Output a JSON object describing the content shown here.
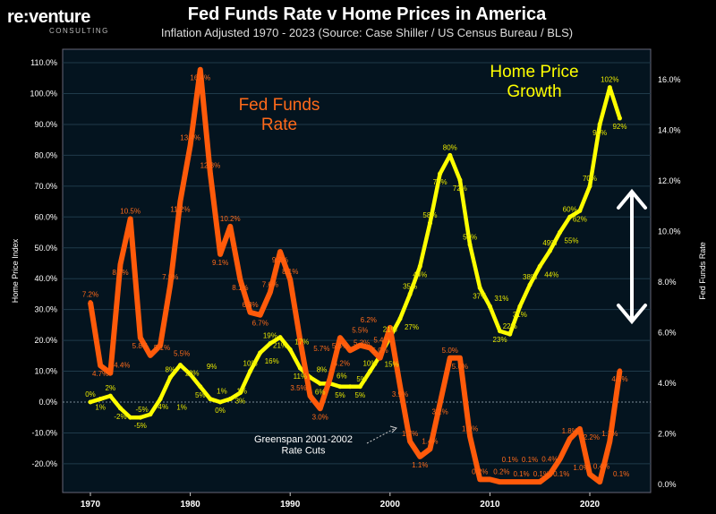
{
  "header": {
    "logo": "re:venture",
    "logo_sub": "CONSULTING",
    "title": "Fed Funds Rate v Home Prices in America",
    "subtitle": "Inflation Adjusted 1970 - 2023 (Source: Case Shiller / US Census Bureau / BLS)"
  },
  "chart_data": {
    "type": "line",
    "title": "Fed Funds Rate v Home Prices in America",
    "x": [
      1970,
      1971,
      1972,
      1973,
      1974,
      1975,
      1976,
      1977,
      1978,
      1979,
      1980,
      1981,
      1982,
      1983,
      1984,
      1985,
      1986,
      1987,
      1988,
      1989,
      1990,
      1991,
      1992,
      1993,
      1994,
      1995,
      1996,
      1997,
      1998,
      1999,
      2000,
      2001,
      2002,
      2003,
      2004,
      2005,
      2006,
      2007,
      2008,
      2009,
      2010,
      2011,
      2012,
      2013,
      2014,
      2015,
      2016,
      2017,
      2018,
      2019,
      2020,
      2021,
      2022,
      2023
    ],
    "xticks": [
      1970,
      1980,
      1990,
      2000,
      2010,
      2020
    ],
    "xlim": [
      1967,
      2026
    ],
    "left_axis": {
      "label": "Home Price Index",
      "ylim": [
        -27,
        115
      ],
      "ticks": [
        -20,
        -10,
        0,
        10,
        20,
        30,
        40,
        50,
        60,
        70,
        80,
        90,
        100,
        110
      ],
      "tick_labels": [
        "-20.0%",
        "-10.0%",
        "0.0%",
        "10.0%",
        "20.0%",
        "30.0%",
        "40.0%",
        "50.0%",
        "60.0%",
        "70.0%",
        "80.0%",
        "90.0%",
        "100.0%",
        "110.0%"
      ]
    },
    "right_axis": {
      "label": "Fed Funds Rate",
      "ylim": [
        -0.2,
        16.5
      ],
      "ticks": [
        0,
        2,
        4,
        6,
        8,
        10,
        12,
        14,
        16
      ],
      "tick_labels": [
        "0.0%",
        "2.0%",
        "4.0%",
        "6.0%",
        "8.0%",
        "10.0%",
        "12.0%",
        "14.0%",
        "16.0%"
      ]
    },
    "grid": true,
    "series": [
      {
        "name": "Home Price Growth",
        "axis": "left",
        "color": "#ffff00",
        "values": [
          0,
          1,
          2,
          -2,
          -5,
          -5,
          -4,
          1,
          8,
          12,
          9,
          5,
          1,
          0,
          1,
          3,
          10,
          16,
          19,
          21,
          17,
          11,
          8,
          6,
          6,
          5,
          5,
          5,
          10,
          15,
          21,
          27,
          35,
          44,
          58,
          74,
          80,
          72,
          51,
          37,
          31,
          23,
          22,
          31,
          38,
          44,
          49,
          55,
          60,
          62,
          70,
          90,
          102,
          92
        ]
      },
      {
        "name": "Fed Funds Rate",
        "axis": "right",
        "color": "#ff5a0a",
        "values": [
          7.2,
          4.7,
          4.4,
          8.7,
          10.5,
          5.8,
          5.1,
          5.5,
          7.9,
          11.2,
          13.4,
          16.4,
          12.3,
          9.1,
          10.2,
          8.1,
          6.8,
          6.7,
          7.6,
          9.2,
          8.1,
          5.7,
          3.5,
          3.0,
          4.2,
          5.8,
          5.3,
          5.5,
          5.4,
          5.0,
          6.2,
          3.9,
          1.7,
          1.1,
          1.4,
          3.2,
          5.0,
          5.0,
          1.9,
          0.2,
          0.2,
          0.1,
          0.1,
          0.1,
          0.1,
          0.1,
          0.4,
          1.0,
          1.8,
          2.2,
          0.4,
          0.1,
          1.7,
          4.5
        ]
      }
    ],
    "annotations": {
      "fed_label": "Fed Funds\nRate",
      "home_label": "Home Price\nGrowth",
      "greenspan": "Greenspan 2001-2002\nRate Cuts"
    },
    "colors": {
      "background": "#04141f",
      "grid": "#1f3a4a",
      "axis": "#cfd8dc"
    }
  }
}
